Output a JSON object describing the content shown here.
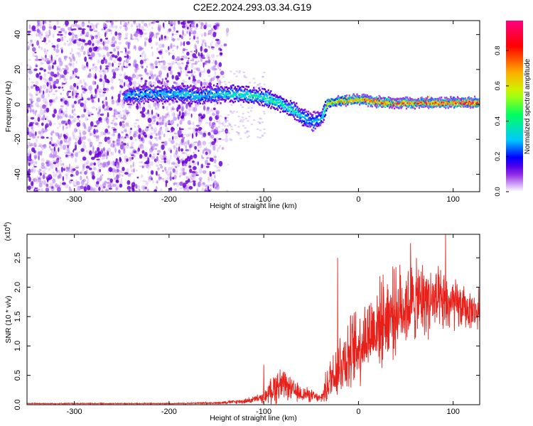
{
  "page_title": "C2E2.2024.293.03.34.G19",
  "chart_data": [
    {
      "type": "heatmap",
      "title": "C2E2.2024.293.03.34.G19",
      "xlabel": "Height of straight line (km)",
      "ylabel": "Frequency (Hz)",
      "xlim": [
        -350,
        128
      ],
      "ylim": [
        -50,
        48
      ],
      "x_ticks": [
        -300,
        -200,
        -100,
        0,
        100
      ],
      "y_ticks": [
        -40,
        -20,
        0,
        20,
        40
      ],
      "x_tick_labels": [
        "-300",
        "-200",
        "-100",
        "0",
        "100"
      ],
      "y_tick_labels": [
        "-40",
        "-20",
        "0",
        "20",
        "40"
      ],
      "colorbar": {
        "label": "Normalized spectral amplitude",
        "range": [
          0,
          0.97
        ],
        "ticks": [
          0,
          0.2,
          0.4,
          0.6,
          0.8
        ],
        "tick_labels": [
          "0.0",
          "0.2",
          "0.4",
          "0.6",
          "0.8"
        ],
        "colors": [
          "#ffffff",
          "#7b00e0",
          "#0000ff",
          "#00c8ff",
          "#00ff60",
          "#c8ff00",
          "#ffaa00",
          "#ff0000",
          "#ff0080"
        ]
      },
      "noise_region": {
        "x_from": -350,
        "x_to": -145,
        "freq_from": -50,
        "freq_to": 48
      },
      "ridge": {
        "x": [
          -248,
          -220,
          -190,
          -170,
          -150,
          -125,
          -100,
          -85,
          -70,
          -60,
          -50,
          -40,
          -33,
          -20,
          0,
          30,
          60,
          90,
          128
        ],
        "center_hz": [
          5,
          6,
          6,
          5,
          6,
          6,
          4,
          1,
          -3,
          -7,
          -10,
          -8,
          1,
          2,
          3,
          1,
          1,
          1,
          1
        ],
        "peak_amplitude": [
          0.3,
          0.32,
          0.35,
          0.34,
          0.36,
          0.4,
          0.42,
          0.42,
          0.4,
          0.35,
          0.3,
          0.3,
          0.7,
          0.75,
          0.85,
          0.9,
          0.9,
          0.9,
          0.9
        ]
      }
    },
    {
      "type": "line",
      "title": "",
      "xlabel": "Height of straight line (km)",
      "ylabel": "SNR (10 * v/v)",
      "scale_label": "(x10",
      "scale_exponent": "4",
      "scale_close": ")",
      "xlim": [
        -350,
        128
      ],
      "ylim": [
        0,
        2.9
      ],
      "x_ticks": [
        -300,
        -200,
        -100,
        0,
        100
      ],
      "y_ticks": [
        0,
        0.5,
        1,
        1.5,
        2,
        2.5
      ],
      "x_tick_labels": [
        "-300",
        "-200",
        "-100",
        "0",
        "100"
      ],
      "y_tick_labels": [
        "0.0",
        "0.5",
        "1.0",
        "1.5",
        "2.0",
        "2.5"
      ],
      "series": [
        {
          "name": "SNR",
          "color": "#e8201a",
          "envelope_x": [
            -350,
            -200,
            -150,
            -120,
            -100,
            -95,
            -85,
            -75,
            -65,
            -55,
            -40,
            -35,
            -28,
            -20,
            -10,
            0,
            10,
            20,
            30,
            40,
            50,
            60,
            70,
            80,
            90,
            100,
            110,
            120,
            128
          ],
          "envelope_mean": [
            0.02,
            0.02,
            0.03,
            0.06,
            0.12,
            0.2,
            0.35,
            0.3,
            0.2,
            0.18,
            0.1,
            0.25,
            0.5,
            0.7,
            0.85,
            1.0,
            1.2,
            1.35,
            1.5,
            1.6,
            1.7,
            1.75,
            1.8,
            1.75,
            1.7,
            1.7,
            1.65,
            1.6,
            1.55
          ],
          "envelope_spread": [
            0.01,
            0.01,
            0.02,
            0.05,
            0.1,
            0.2,
            0.4,
            0.25,
            0.2,
            0.15,
            0.08,
            0.3,
            0.5,
            0.7,
            0.75,
            0.8,
            0.8,
            0.85,
            0.9,
            0.85,
            0.85,
            0.8,
            0.75,
            0.7,
            0.65,
            0.55,
            0.45,
            0.35,
            0.3
          ],
          "annotated_peaks": [
            {
              "x": -100,
              "y": 0.68
            },
            {
              "x": -22,
              "y": 2.5
            },
            {
              "x": 55,
              "y": 2.75
            },
            {
              "x": 92,
              "y": 2.9
            },
            {
              "x": 127,
              "y": 2.0
            }
          ]
        }
      ]
    }
  ]
}
